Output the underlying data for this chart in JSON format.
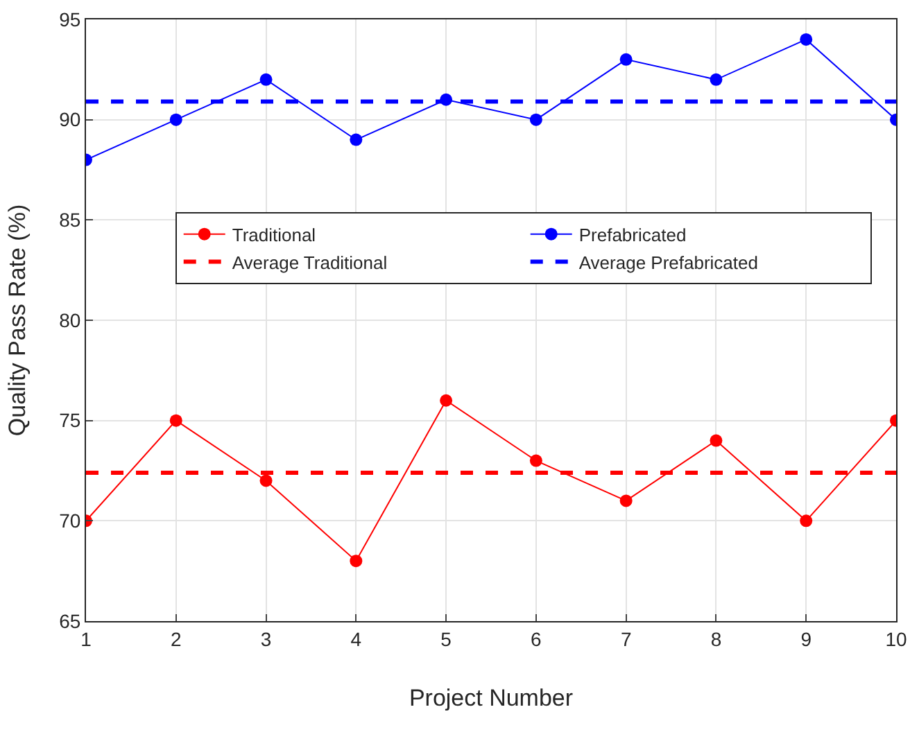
{
  "chart_data": {
    "type": "line",
    "xlabel": "Project Number",
    "ylabel": "Quality Pass Rate (%)",
    "x": [
      1,
      2,
      3,
      4,
      5,
      6,
      7,
      8,
      9,
      10
    ],
    "series": [
      {
        "name": "Traditional",
        "color": "#ff0000",
        "marker": "circle",
        "line_style": "solid",
        "values": [
          70,
          75,
          72,
          68,
          76,
          73,
          71,
          74,
          70,
          75
        ]
      },
      {
        "name": "Prefabricated",
        "color": "#0000ff",
        "marker": "circle",
        "line_style": "solid",
        "values": [
          88,
          90,
          92,
          89,
          91,
          90,
          93,
          92,
          94,
          90
        ]
      },
      {
        "name": "Average Traditional",
        "color": "#ff0000",
        "marker": "none",
        "line_style": "dashed",
        "values": [
          72.4,
          72.4,
          72.4,
          72.4,
          72.4,
          72.4,
          72.4,
          72.4,
          72.4,
          72.4
        ]
      },
      {
        "name": "Average Prefabricated",
        "color": "#0000ff",
        "marker": "none",
        "line_style": "dashed",
        "values": [
          90.9,
          90.9,
          90.9,
          90.9,
          90.9,
          90.9,
          90.9,
          90.9,
          90.9,
          90.9
        ]
      }
    ],
    "xlim": [
      1,
      10
    ],
    "xticks": [
      1,
      2,
      3,
      4,
      5,
      6,
      7,
      8,
      9,
      10
    ],
    "ylim": [
      65,
      95
    ],
    "yticks": [
      65,
      70,
      75,
      80,
      85,
      90,
      95
    ],
    "grid": true,
    "legend": "top"
  }
}
